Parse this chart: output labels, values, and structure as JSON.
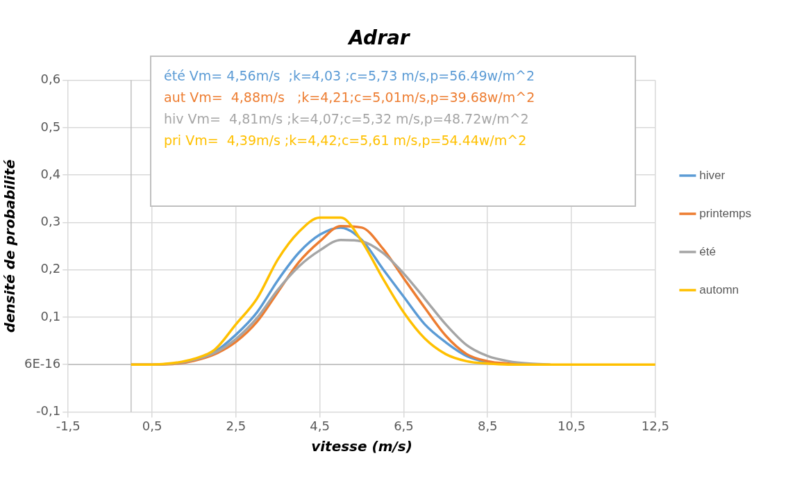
{
  "chart_data": {
    "type": "line",
    "title": "Adrar",
    "xlabel": "vitesse (m/s)",
    "ylabel": "densité de probabilité",
    "x": [
      0,
      0.5,
      1,
      1.5,
      2,
      2.5,
      3,
      3.5,
      4,
      4.5,
      5,
      5.5,
      6,
      6.5,
      7,
      7.5,
      8,
      8.5,
      9,
      9.5,
      10,
      10.5,
      11,
      11.5,
      12,
      12.5
    ],
    "series": [
      {
        "name": "hiver",
        "color": "#5b9bd5",
        "values": [
          null,
          null,
          null,
          0.01,
          0.027,
          0.063,
          0.11,
          0.178,
          0.236,
          0.274,
          0.289,
          0.263,
          0.202,
          0.143,
          0.085,
          0.047,
          0.018,
          0.005,
          0.001,
          0,
          null,
          null,
          null,
          null,
          null,
          null
        ]
      },
      {
        "name": "printemps",
        "color": "#ed7d31",
        "values": [
          0,
          0,
          0.001,
          0.008,
          0.022,
          0.048,
          0.09,
          0.153,
          0.216,
          0.26,
          0.292,
          0.289,
          0.245,
          0.182,
          0.12,
          0.061,
          0.022,
          0.007,
          0.002,
          0,
          null,
          null,
          null,
          null,
          null,
          null
        ]
      },
      {
        "name": "été",
        "color": "#a5a5a5",
        "values": [
          0,
          0,
          0.002,
          0.01,
          0.025,
          0.054,
          0.098,
          0.158,
          0.207,
          0.241,
          0.263,
          0.26,
          0.236,
          0.192,
          0.139,
          0.085,
          0.041,
          0.018,
          0.007,
          0.002,
          0,
          null,
          null,
          null,
          null,
          null
        ]
      },
      {
        "name": "automn",
        "color": "#ffc000",
        "values": [
          0,
          0,
          0.003,
          0.012,
          0.032,
          0.085,
          0.139,
          0.222,
          0.28,
          0.31,
          0.31,
          0.26,
          0.182,
          0.11,
          0.055,
          0.022,
          0.007,
          0.002,
          0,
          0,
          0,
          0,
          0,
          0,
          0,
          0
        ]
      }
    ],
    "xlim": [
      -1.5,
      12.5
    ],
    "xticks": [
      {
        "value": -1.5,
        "label": "-1,5"
      },
      {
        "value": 0.5,
        "label": "0,5"
      },
      {
        "value": 2.5,
        "label": "2,5"
      },
      {
        "value": 4.5,
        "label": "4,5"
      },
      {
        "value": 6.5,
        "label": "6,5"
      },
      {
        "value": 8.5,
        "label": "8,5"
      },
      {
        "value": 10.5,
        "label": "10,5"
      },
      {
        "value": 12.5,
        "label": "12,5"
      }
    ],
    "ylim": [
      -0.1,
      0.6
    ],
    "yticks": [
      {
        "value": -0.1,
        "label": "-0,1"
      },
      {
        "value": 0,
        "label": "6E-16"
      },
      {
        "value": 0.1,
        "label": "0,1"
      },
      {
        "value": 0.2,
        "label": "0,2"
      },
      {
        "value": 0.3,
        "label": "0,3"
      },
      {
        "value": 0.4,
        "label": "0,4"
      },
      {
        "value": 0.5,
        "label": "0,5"
      },
      {
        "value": 0.6,
        "label": "0,6"
      }
    ],
    "grid": true,
    "legend": "right",
    "marker": "none",
    "line_style": "solid",
    "annotations": [
      "été Vm= 4,56m/s  ;k=4,03 ;c=5,73 m/s,p=56.49w/m^2",
      "aut Vm=  4,88m/s   ;k=4,21;c=5,01m/s,p=39.68w/m^2",
      "hiv Vm=  4,81m/s ;k=4,07;c=5,32 m/s,p=48.72w/m^2",
      "pri Vm=  4,39m/s ;k=4,42;c=5,61 m/s,p=54.44w/m^2"
    ]
  }
}
